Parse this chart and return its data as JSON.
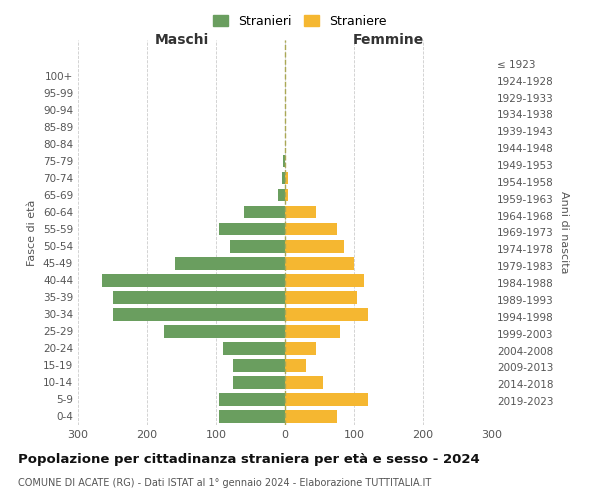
{
  "age_groups": [
    "0-4",
    "5-9",
    "10-14",
    "15-19",
    "20-24",
    "25-29",
    "30-34",
    "35-39",
    "40-44",
    "45-49",
    "50-54",
    "55-59",
    "60-64",
    "65-69",
    "70-74",
    "75-79",
    "80-84",
    "85-89",
    "90-94",
    "95-99",
    "100+"
  ],
  "birth_years": [
    "2019-2023",
    "2014-2018",
    "2009-2013",
    "2004-2008",
    "1999-2003",
    "1994-1998",
    "1989-1993",
    "1984-1988",
    "1979-1983",
    "1974-1978",
    "1969-1973",
    "1964-1968",
    "1959-1963",
    "1954-1958",
    "1949-1953",
    "1944-1948",
    "1939-1943",
    "1934-1938",
    "1929-1933",
    "1924-1928",
    "≤ 1923"
  ],
  "males": [
    95,
    95,
    75,
    75,
    90,
    175,
    250,
    250,
    265,
    160,
    80,
    95,
    60,
    10,
    4,
    3,
    0,
    0,
    0,
    0,
    0
  ],
  "females": [
    75,
    120,
    55,
    30,
    45,
    80,
    120,
    105,
    115,
    100,
    85,
    75,
    45,
    5,
    5,
    0,
    0,
    0,
    0,
    0,
    0
  ],
  "male_color": "#6a9e5f",
  "female_color": "#f5b731",
  "male_label": "Stranieri",
  "female_label": "Straniere",
  "title": "Popolazione per cittadinanza straniera per età e sesso - 2024",
  "subtitle": "COMUNE DI ACATE (RG) - Dati ISTAT al 1° gennaio 2024 - Elaborazione TUTTITALIA.IT",
  "xlabel_left": "Maschi",
  "xlabel_right": "Femmine",
  "ylabel_left": "Fasce di età",
  "ylabel_right": "Anni di nascita",
  "xlim": 300,
  "background_color": "#ffffff",
  "grid_color": "#cccccc"
}
